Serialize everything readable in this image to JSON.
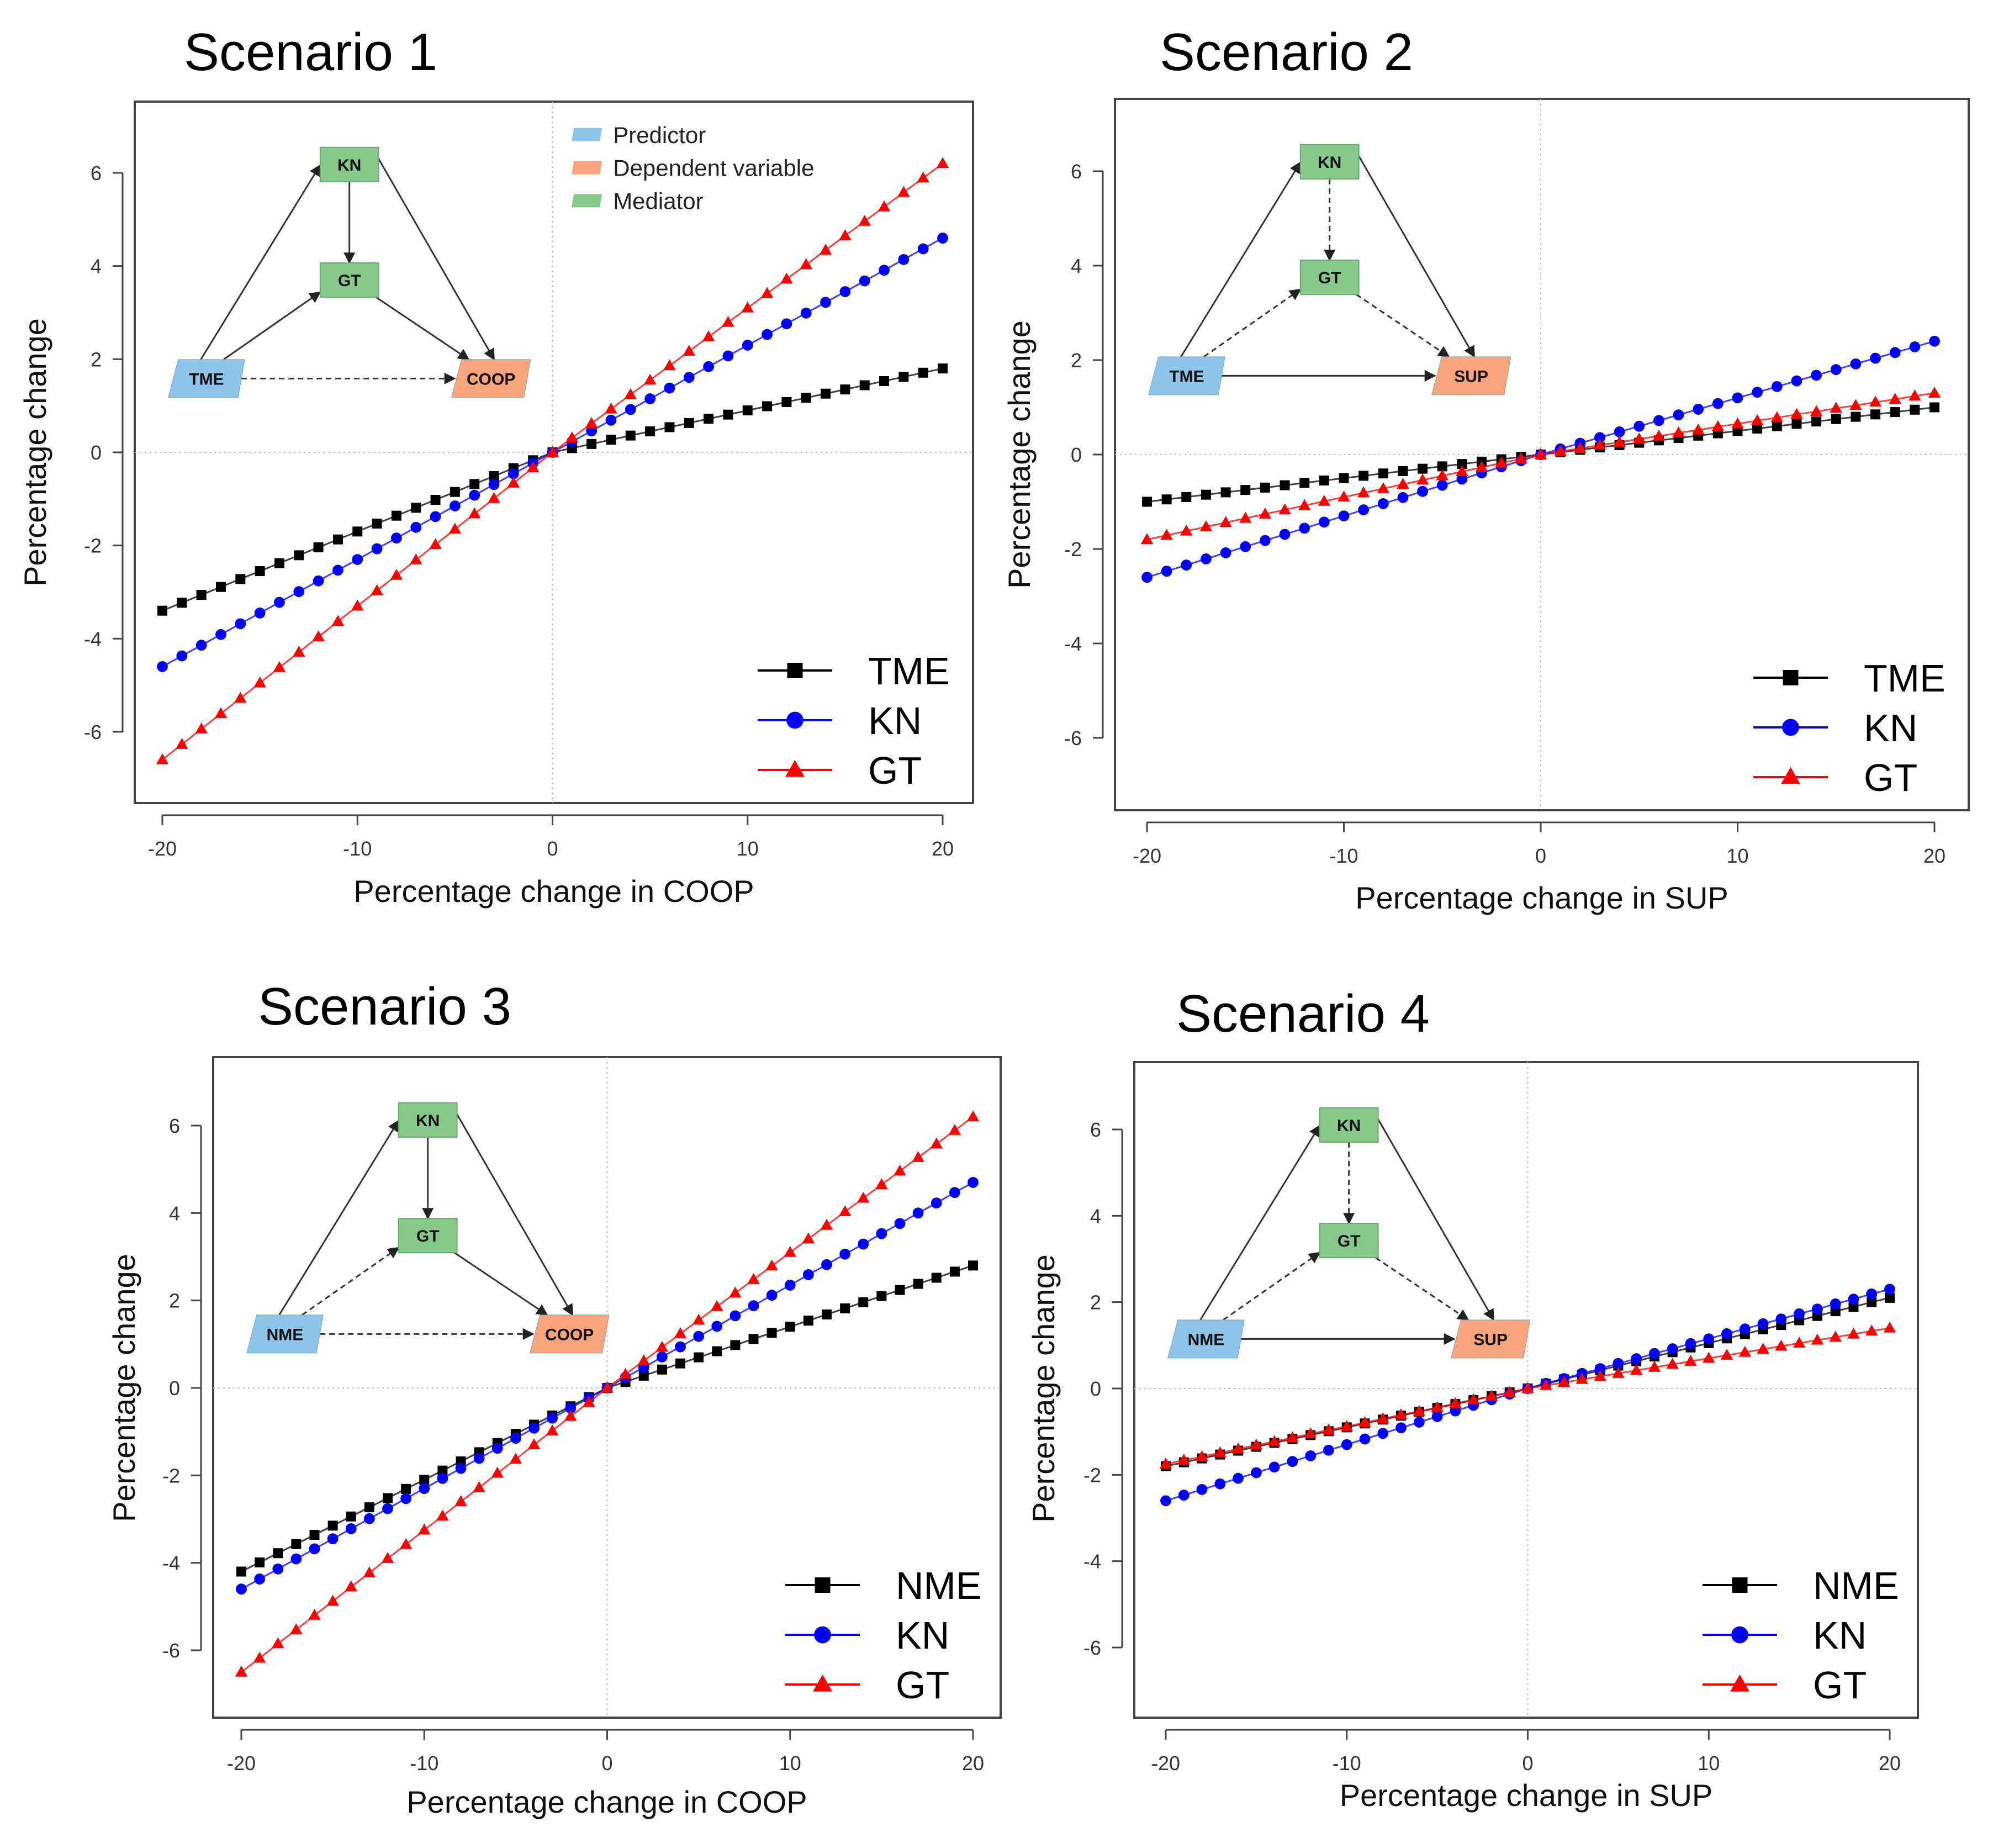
{
  "colors": {
    "TME": "#000000",
    "NME": "#000000",
    "KN": "#0000ff",
    "GT": "#ff0000",
    "predictor": "#8ec3ea",
    "dependent": "#f9a47c",
    "mediator": "#86c98a"
  },
  "inset_legend": {
    "predictor": "Predictor",
    "dependent": "Dependent variable",
    "mediator": "Mediator"
  },
  "chart_data": [
    {
      "type": "line",
      "title": "Scenario 1",
      "xlabel": "Percentage change in COOP",
      "ylabel": "Percentage change",
      "xlim": [
        -20,
        20
      ],
      "ylim": [
        -7.5,
        7.5
      ],
      "xticks": [
        -20,
        -10,
        0,
        10,
        20
      ],
      "yticks": [
        -6,
        -4,
        -2,
        0,
        2,
        4,
        6
      ],
      "legend_position": "bottom-right",
      "diagram": {
        "predictor": "TME",
        "mediator1": "KN",
        "mediator2": "GT",
        "dependent": "COOP",
        "paths": {
          "pred_kn": false,
          "kn_gt": false,
          "pred_gt": false,
          "gt_dep": false,
          "kn_dep": false,
          "pred_dep": true
        }
      },
      "series": [
        {
          "name": "TME",
          "marker": "square",
          "values": [
            -3.4,
            -3.23,
            -3.06,
            -2.89,
            -2.72,
            -2.55,
            -2.38,
            -2.21,
            -2.04,
            -1.87,
            -1.7,
            -1.53,
            -1.36,
            -1.19,
            -1.02,
            -0.85,
            -0.68,
            -0.51,
            -0.34,
            -0.17,
            0,
            0.09,
            0.18,
            0.27,
            0.36,
            0.45,
            0.54,
            0.63,
            0.72,
            0.81,
            0.9,
            0.99,
            1.08,
            1.17,
            1.26,
            1.35,
            1.44,
            1.53,
            1.62,
            1.71,
            1.8
          ]
        },
        {
          "name": "KN",
          "marker": "circle",
          "values": [
            -4.6,
            -4.37,
            -4.14,
            -3.91,
            -3.68,
            -3.45,
            -3.22,
            -2.99,
            -2.76,
            -2.53,
            -2.3,
            -2.07,
            -1.84,
            -1.61,
            -1.38,
            -1.15,
            -0.92,
            -0.69,
            -0.46,
            -0.23,
            0,
            0.23,
            0.46,
            0.69,
            0.92,
            1.15,
            1.38,
            1.61,
            1.84,
            2.07,
            2.3,
            2.53,
            2.76,
            2.99,
            3.22,
            3.45,
            3.68,
            3.91,
            4.14,
            4.37,
            4.6
          ]
        },
        {
          "name": "GT",
          "marker": "triangle",
          "values": [
            -6.6,
            -6.27,
            -5.94,
            -5.61,
            -5.28,
            -4.95,
            -4.62,
            -4.29,
            -3.96,
            -3.63,
            -3.3,
            -2.97,
            -2.64,
            -2.31,
            -1.98,
            -1.65,
            -1.32,
            -0.99,
            -0.66,
            -0.33,
            0,
            0.31,
            0.62,
            0.93,
            1.24,
            1.55,
            1.86,
            2.17,
            2.48,
            2.79,
            3.1,
            3.41,
            3.72,
            4.03,
            4.34,
            4.65,
            4.96,
            5.27,
            5.58,
            5.89,
            6.2
          ]
        }
      ]
    },
    {
      "type": "line",
      "title": "Scenario 2",
      "xlabel": "Percentage change in SUP",
      "ylabel": "Percentage change",
      "xlim": [
        -20,
        20
      ],
      "ylim": [
        -7.5,
        7.5
      ],
      "xticks": [
        -20,
        -10,
        0,
        10,
        20
      ],
      "yticks": [
        -6,
        -4,
        -2,
        0,
        2,
        4,
        6
      ],
      "legend_position": "bottom-right",
      "diagram": {
        "predictor": "TME",
        "mediator1": "KN",
        "mediator2": "GT",
        "dependent": "SUP",
        "paths": {
          "pred_kn": false,
          "kn_gt": true,
          "pred_gt": true,
          "gt_dep": true,
          "kn_dep": false,
          "pred_dep": false
        }
      },
      "series": [
        {
          "name": "TME",
          "marker": "square",
          "values": [
            -1,
            -0.95,
            -0.9,
            -0.85,
            -0.8,
            -0.75,
            -0.7,
            -0.65,
            -0.6,
            -0.55,
            -0.5,
            -0.45,
            -0.4,
            -0.35,
            -0.3,
            -0.25,
            -0.2,
            -0.15,
            -0.1,
            -0.05,
            0,
            0.05,
            0.1,
            0.15,
            0.2,
            0.25,
            0.3,
            0.35,
            0.4,
            0.45,
            0.5,
            0.55,
            0.6,
            0.65,
            0.7,
            0.75,
            0.8,
            0.85,
            0.9,
            0.95,
            1.0
          ]
        },
        {
          "name": "KN",
          "marker": "circle",
          "values": [
            -2.6,
            -2.47,
            -2.34,
            -2.21,
            -2.08,
            -1.95,
            -1.82,
            -1.69,
            -1.56,
            -1.43,
            -1.3,
            -1.17,
            -1.04,
            -0.91,
            -0.78,
            -0.65,
            -0.52,
            -0.39,
            -0.26,
            -0.13,
            0,
            0.12,
            0.24,
            0.36,
            0.48,
            0.6,
            0.72,
            0.84,
            0.96,
            1.08,
            1.2,
            1.32,
            1.44,
            1.56,
            1.68,
            1.8,
            1.92,
            2.04,
            2.16,
            2.28,
            2.4
          ]
        },
        {
          "name": "GT",
          "marker": "triangle",
          "values": [
            -1.8,
            -1.71,
            -1.62,
            -1.53,
            -1.44,
            -1.35,
            -1.26,
            -1.17,
            -1.08,
            -0.99,
            -0.9,
            -0.81,
            -0.72,
            -0.63,
            -0.54,
            -0.45,
            -0.36,
            -0.27,
            -0.18,
            -0.09,
            0,
            0.07,
            0.13,
            0.2,
            0.26,
            0.33,
            0.39,
            0.46,
            0.52,
            0.59,
            0.65,
            0.72,
            0.78,
            0.85,
            0.91,
            0.98,
            1.04,
            1.11,
            1.17,
            1.24,
            1.3
          ]
        }
      ]
    },
    {
      "type": "line",
      "title": "Scenario 3",
      "xlabel": "Percentage change in COOP",
      "ylabel": "Percentage change",
      "xlim": [
        -20,
        20
      ],
      "ylim": [
        -7.2,
        7.2
      ],
      "xticks": [
        -20,
        -10,
        0,
        10,
        20
      ],
      "yticks": [
        -6,
        -4,
        -2,
        0,
        2,
        4,
        6
      ],
      "legend_position": "bottom-right",
      "diagram": {
        "predictor": "NME",
        "mediator1": "KN",
        "mediator2": "GT",
        "dependent": "COOP",
        "paths": {
          "pred_kn": false,
          "kn_gt": false,
          "pred_gt": true,
          "gt_dep": false,
          "kn_dep": false,
          "pred_dep": true
        }
      },
      "series": [
        {
          "name": "NME",
          "marker": "square",
          "values": [
            -4.2,
            -3.99,
            -3.78,
            -3.57,
            -3.36,
            -3.15,
            -2.94,
            -2.73,
            -2.52,
            -2.31,
            -2.1,
            -1.89,
            -1.68,
            -1.47,
            -1.26,
            -1.05,
            -0.84,
            -0.63,
            -0.42,
            -0.21,
            0,
            0.14,
            0.28,
            0.42,
            0.56,
            0.7,
            0.84,
            0.98,
            1.12,
            1.26,
            1.4,
            1.54,
            1.68,
            1.82,
            1.96,
            2.1,
            2.24,
            2.38,
            2.52,
            2.66,
            2.8
          ]
        },
        {
          "name": "KN",
          "marker": "circle",
          "values": [
            -4.6,
            -4.37,
            -4.14,
            -3.91,
            -3.68,
            -3.45,
            -3.22,
            -2.99,
            -2.76,
            -2.53,
            -2.3,
            -2.07,
            -1.84,
            -1.61,
            -1.38,
            -1.15,
            -0.92,
            -0.69,
            -0.46,
            -0.23,
            0,
            0.24,
            0.47,
            0.71,
            0.94,
            1.18,
            1.41,
            1.65,
            1.88,
            2.12,
            2.35,
            2.59,
            2.82,
            3.06,
            3.29,
            3.53,
            3.76,
            4.0,
            4.23,
            4.47,
            4.7
          ]
        },
        {
          "name": "GT",
          "marker": "triangle",
          "values": [
            -6.5,
            -6.18,
            -5.85,
            -5.53,
            -5.2,
            -4.88,
            -4.55,
            -4.23,
            -3.9,
            -3.58,
            -3.25,
            -2.93,
            -2.6,
            -2.28,
            -1.95,
            -1.63,
            -1.3,
            -0.98,
            -0.65,
            -0.33,
            0,
            0.31,
            0.62,
            0.93,
            1.24,
            1.55,
            1.86,
            2.17,
            2.48,
            2.79,
            3.1,
            3.41,
            3.72,
            4.03,
            4.34,
            4.65,
            4.96,
            5.27,
            5.58,
            5.89,
            6.2
          ]
        }
      ]
    },
    {
      "type": "line",
      "title": "Scenario 4",
      "xlabel": "Percentage change in SUP",
      "ylabel": "Percentage change",
      "xlim": [
        -20,
        20
      ],
      "ylim": [
        -7.2,
        7.2
      ],
      "xticks": [
        -20,
        -10,
        0,
        10,
        20
      ],
      "yticks": [
        -6,
        -4,
        -2,
        0,
        2,
        4,
        6
      ],
      "legend_position": "bottom-right",
      "diagram": {
        "predictor": "NME",
        "mediator1": "KN",
        "mediator2": "GT",
        "dependent": "SUP",
        "paths": {
          "pred_kn": false,
          "kn_gt": true,
          "pred_gt": true,
          "gt_dep": true,
          "kn_dep": false,
          "pred_dep": false
        }
      },
      "series": [
        {
          "name": "NME",
          "marker": "square",
          "values": [
            -1.8,
            -1.71,
            -1.62,
            -1.53,
            -1.44,
            -1.35,
            -1.26,
            -1.17,
            -1.08,
            -0.99,
            -0.9,
            -0.81,
            -0.72,
            -0.63,
            -0.54,
            -0.45,
            -0.36,
            -0.27,
            -0.18,
            -0.09,
            0,
            0.11,
            0.21,
            0.32,
            0.42,
            0.53,
            0.63,
            0.74,
            0.84,
            0.95,
            1.05,
            1.16,
            1.26,
            1.37,
            1.47,
            1.58,
            1.68,
            1.79,
            1.89,
            2.0,
            2.1
          ]
        },
        {
          "name": "KN",
          "marker": "circle",
          "values": [
            -2.6,
            -2.47,
            -2.34,
            -2.21,
            -2.08,
            -1.95,
            -1.82,
            -1.69,
            -1.56,
            -1.43,
            -1.3,
            -1.17,
            -1.04,
            -0.91,
            -0.78,
            -0.65,
            -0.52,
            -0.39,
            -0.26,
            -0.13,
            0,
            0.12,
            0.23,
            0.35,
            0.46,
            0.58,
            0.69,
            0.81,
            0.92,
            1.04,
            1.15,
            1.27,
            1.38,
            1.5,
            1.61,
            1.73,
            1.84,
            1.96,
            2.07,
            2.19,
            2.3
          ]
        },
        {
          "name": "GT",
          "marker": "triangle",
          "values": [
            -1.75,
            -1.66,
            -1.58,
            -1.49,
            -1.4,
            -1.31,
            -1.23,
            -1.14,
            -1.05,
            -0.96,
            -0.88,
            -0.79,
            -0.7,
            -0.61,
            -0.53,
            -0.44,
            -0.35,
            -0.26,
            -0.18,
            -0.09,
            0,
            0.07,
            0.14,
            0.21,
            0.28,
            0.35,
            0.42,
            0.49,
            0.56,
            0.63,
            0.7,
            0.77,
            0.84,
            0.91,
            0.98,
            1.05,
            1.12,
            1.19,
            1.26,
            1.33,
            1.4
          ]
        }
      ]
    }
  ]
}
